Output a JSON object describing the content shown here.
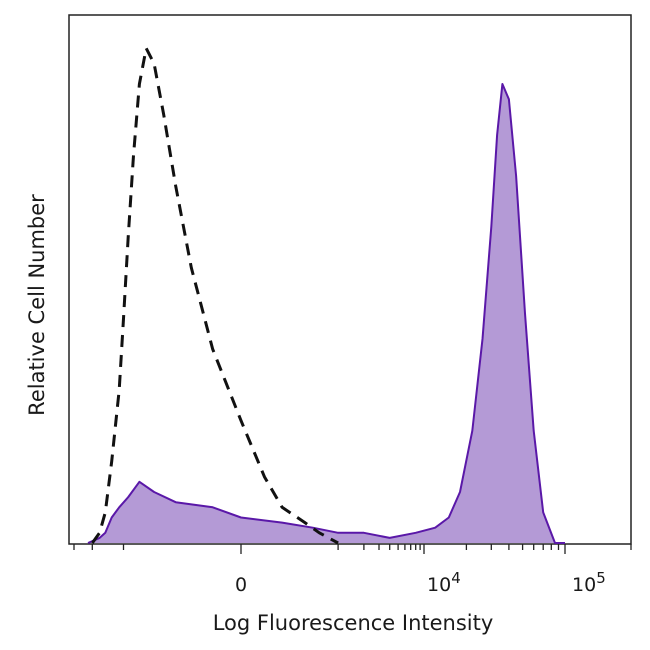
{
  "chart_data": {
    "type": "area",
    "xlabel": "Log Fluorescence Intensity",
    "ylabel": "Relative Cell Number",
    "x_scale": "biexponential",
    "x_tick_labels": [
      {
        "value": 0,
        "label": "0"
      },
      {
        "value": 10000,
        "label": "10^4"
      },
      {
        "value": 100000,
        "label": "10^5"
      }
    ],
    "grid": false,
    "legend": "none",
    "series": [
      {
        "style": "dashed",
        "color": "#111111",
        "fill": "none",
        "x": [
          -2000,
          -1700,
          -1500,
          -1300,
          -1100,
          -1000,
          -900,
          -800,
          -700,
          -600,
          -500,
          -400,
          -300,
          -200,
          -100,
          0,
          100,
          200,
          400,
          600,
          1000
        ],
        "y": [
          0.0,
          0.02,
          0.06,
          0.16,
          0.3,
          0.44,
          0.6,
          0.76,
          0.9,
          0.97,
          0.94,
          0.84,
          0.7,
          0.54,
          0.38,
          0.24,
          0.13,
          0.07,
          0.04,
          0.02,
          0.0
        ]
      },
      {
        "style": "solid",
        "color": "#5a18a8",
        "fill": "#b49ad6",
        "x": [
          -2200,
          -1700,
          -1500,
          -1300,
          -1100,
          -900,
          -700,
          -500,
          -300,
          -100,
          0,
          200,
          500,
          1000,
          2000,
          4000,
          8000,
          12000,
          15000,
          18000,
          22000,
          26000,
          30000,
          33000,
          36000,
          40000,
          45000,
          52000,
          60000,
          70000,
          85000,
          100000
        ],
        "y": [
          0.0,
          0.01,
          0.02,
          0.05,
          0.07,
          0.09,
          0.12,
          0.1,
          0.08,
          0.07,
          0.05,
          0.04,
          0.03,
          0.02,
          0.02,
          0.01,
          0.02,
          0.03,
          0.05,
          0.1,
          0.22,
          0.4,
          0.62,
          0.8,
          0.9,
          0.87,
          0.72,
          0.45,
          0.22,
          0.06,
          0.0,
          0.0
        ]
      }
    ]
  }
}
